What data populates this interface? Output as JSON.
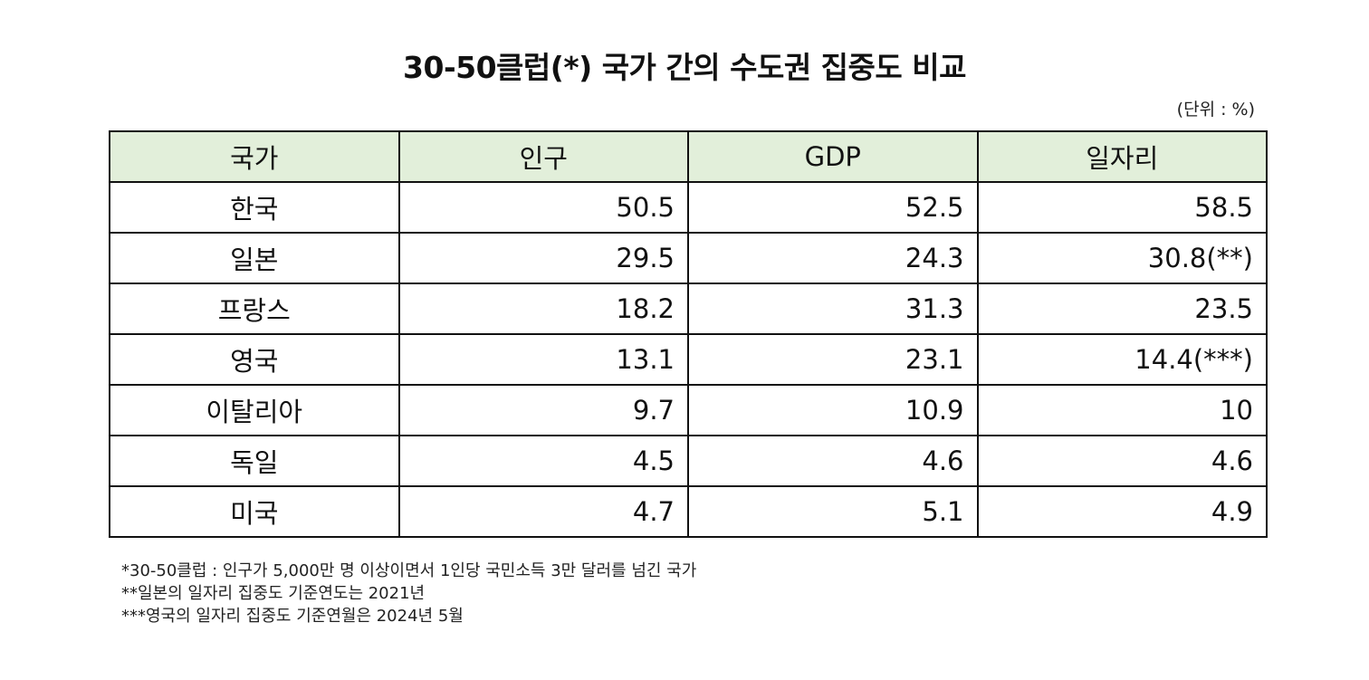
{
  "title": "30-50클럽(*) 국가 간의 수도권 집중도 비교",
  "unit": "(단위 : %)",
  "table": {
    "headers": [
      "국가",
      "인구",
      "GDP",
      "일자리"
    ],
    "rows": [
      [
        "한국",
        "50.5",
        "52.5",
        "58.5"
      ],
      [
        "일본",
        "29.5",
        "24.3",
        "30.8(**)"
      ],
      [
        "프랑스",
        "18.2",
        "31.3",
        "23.5"
      ],
      [
        "영국",
        "13.1",
        "23.1",
        "14.4(***)"
      ],
      [
        "이탈리아",
        "9.7",
        "10.9",
        "10"
      ],
      [
        "독일",
        "4.5",
        "4.6",
        "4.6"
      ],
      [
        "미국",
        "4.7",
        "5.1",
        "4.9"
      ]
    ]
  },
  "notes": [
    "*30-50클럽 : 인구가 5,000만 명 이상이면서 1인당 국민소득 3만 달러를 넘긴 국가",
    "**일본의 일자리 집중도 기준연도는 2021년",
    "***영국의 일자리 집중도 기준연월은 2024년 5월"
  ],
  "colors": {
    "header_bg": "#e2efda",
    "border": "#111111"
  }
}
